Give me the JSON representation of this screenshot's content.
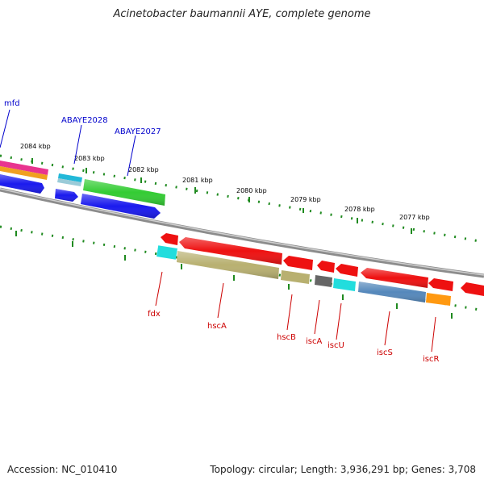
{
  "title": "Acinetobacter baumannii AYE, complete genome",
  "accession": "Accession: NC_010410",
  "summary": "Topology: circular; Length: 3,936,291 bp; Genes: 3,708",
  "colors": {
    "backbone": "#8c8c8c",
    "tick": "#1f8a1f",
    "ruler_label": "#000000",
    "forward_label": "#0000cc",
    "reverse_label": "#cc0000"
  },
  "scale_labels": [
    "2084 kbp",
    "2083 kbp",
    "2082 kbp",
    "2081 kbp",
    "2080 kbp",
    "2079 kbp",
    "2078 kbp",
    "2077 kbp"
  ],
  "forward_features": [
    {
      "label": "mfd",
      "colors": [
        "#e8348f",
        "#f0a020",
        "#1a1aee"
      ]
    },
    {
      "label": "ABAYE2028",
      "colors": [
        "#22b8d8",
        "#1a1aee"
      ]
    },
    {
      "label": "ABAYE2027",
      "colors": [
        "#33cc33",
        "#1a1aee"
      ]
    }
  ],
  "reverse_features": [
    {
      "label": "fdx",
      "colors": [
        "#ee1111",
        "#22dddd"
      ]
    },
    {
      "label": "hscA",
      "colors": [
        "#ee1111",
        "#b8b070"
      ]
    },
    {
      "label": "hscB",
      "colors": [
        "#ee1111",
        "#b8b070"
      ]
    },
    {
      "label": "iscA",
      "colors": [
        "#ee1111",
        "#666666"
      ]
    },
    {
      "label": "iscU",
      "colors": [
        "#ee1111",
        "#22dddd"
      ]
    },
    {
      "label": "iscS",
      "colors": [
        "#ee1111",
        "#5588bb"
      ]
    },
    {
      "label": "iscR",
      "colors": [
        "#ee1111",
        "#ff9911"
      ]
    }
  ]
}
